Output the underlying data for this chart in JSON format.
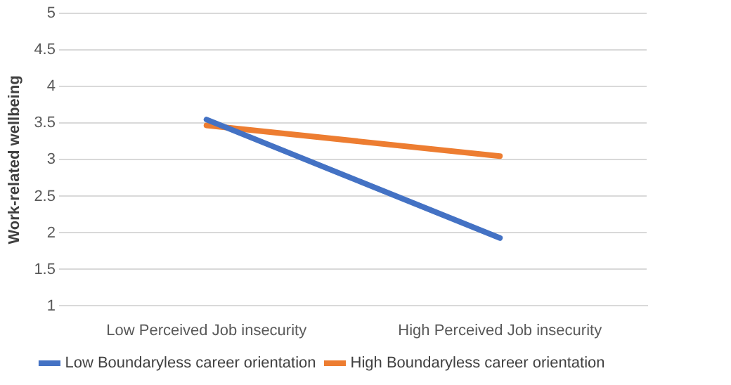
{
  "chart_data": {
    "type": "line",
    "ylabel": "Work-related wellbeing",
    "categories": [
      "Low Perceived Job insecurity",
      "High Perceived Job insecurity"
    ],
    "series": [
      {
        "name": "Low Boundaryless career orientation",
        "color": "#4472c4",
        "values": [
          3.55,
          1.93
        ]
      },
      {
        "name": "High Boundaryless career orientation",
        "color": "#ed7d31",
        "values": [
          3.47,
          3.05
        ]
      }
    ],
    "ylim": [
      1,
      5
    ],
    "yticks": [
      1,
      1.5,
      2,
      2.5,
      3,
      3.5,
      4,
      4.5,
      5
    ],
    "grid": "y",
    "legend": "bottom",
    "marker": "none",
    "line_style": "solid"
  }
}
